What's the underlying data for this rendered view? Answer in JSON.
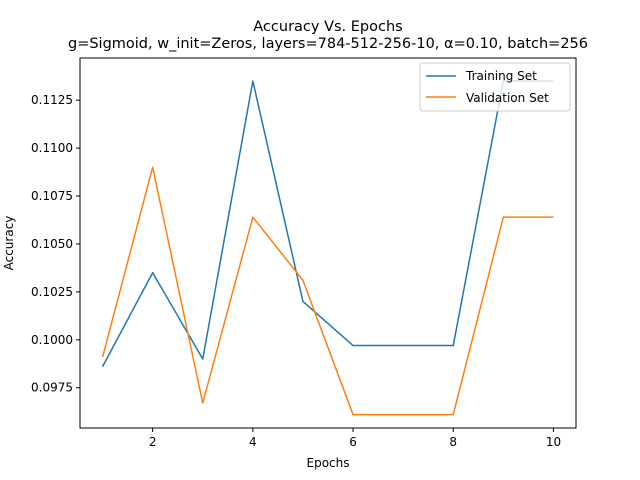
{
  "chart_data": {
    "type": "line",
    "title": "Accuracy Vs. Epochs",
    "subtitle": "g=Sigmoid, w_init=Zeros, layers=784-512-256-10, α=0.10, batch=256",
    "xlabel": "Epochs",
    "ylabel": "Accuracy",
    "xlim": [
      0.55,
      10.45
    ],
    "ylim": [
      0.0954,
      0.1147
    ],
    "x": [
      1,
      2,
      3,
      4,
      5,
      6,
      7,
      8,
      9,
      10
    ],
    "x_ticks": [
      2,
      4,
      6,
      8,
      10
    ],
    "x_tick_labels": [
      "2",
      "4",
      "6",
      "8",
      "10"
    ],
    "y_ticks": [
      0.0975,
      0.1,
      0.1025,
      0.105,
      0.1075,
      0.11,
      0.1125
    ],
    "y_tick_labels": [
      "0.0975",
      "0.1000",
      "0.1025",
      "0.1050",
      "0.1075",
      "0.1100",
      "0.1125"
    ],
    "grid": false,
    "legend_position": "top-right",
    "series": [
      {
        "name": "Training Set",
        "color": "#1f77b4",
        "values": [
          0.0986,
          0.1035,
          0.099,
          0.1135,
          0.102,
          0.0997,
          0.0997,
          0.0997,
          0.1135,
          0.1135
        ]
      },
      {
        "name": "Validation Set",
        "color": "#ff7f0e",
        "values": [
          0.0991,
          0.109,
          0.0967,
          0.1064,
          0.1031,
          0.0961,
          0.0961,
          0.0961,
          0.1064,
          0.1064
        ]
      }
    ]
  }
}
